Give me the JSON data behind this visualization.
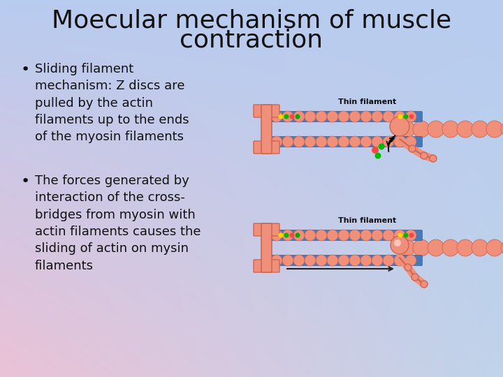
{
  "title_line1": "Moecular mechanism of muscle",
  "title_line2": "contraction",
  "title_fontsize": 26,
  "title_color": "#111111",
  "bullet1_text": "Sliding filament\nmechanism: Z discs are\npulled by the actin\nfilaments up to the ends\nof the myosin filaments",
  "bullet2_text": "The forces generated by\ninteraction of the cross-\nbridges from myosin with\nactin filaments causes the\nsliding of actin on mysin\nfilaments",
  "text_color": "#111111",
  "bullet_fontsize": 13,
  "salmon": "#F0907A",
  "salmon_dark": "#CC6655",
  "blue_filament": "#4878B8",
  "blue_dark": "#3060A0",
  "label_fontsize": 8,
  "bg_left_top": "#C8C0E8",
  "bg_right_top": "#A0C0E0",
  "bg_left_bot": "#E8C0D8",
  "bg_right_bot": "#A8C8E8"
}
